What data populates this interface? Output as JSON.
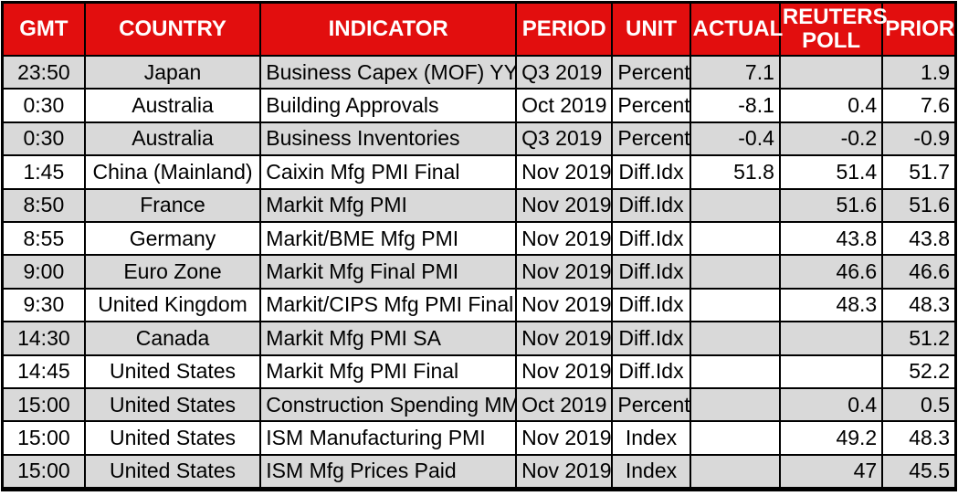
{
  "colors": {
    "header_bg": "#E20E0E",
    "header_text": "#FFFFFF",
    "row_stripe_bg": "#D9D9D9",
    "row_bg": "#FFFFFF",
    "grid_border": "#000000",
    "body_text": "#000000"
  },
  "table": {
    "columns": [
      {
        "key": "gmt",
        "label": "GMT",
        "align": "center"
      },
      {
        "key": "country",
        "label": "COUNTRY",
        "align": "center"
      },
      {
        "key": "indicator",
        "label": "INDICATOR",
        "align": "left"
      },
      {
        "key": "period",
        "label": "PERIOD",
        "align": "left"
      },
      {
        "key": "unit",
        "label": "UNIT",
        "align": "center"
      },
      {
        "key": "actual",
        "label": "ACTUAL",
        "align": "right"
      },
      {
        "key": "poll",
        "label": "REUTERS POLL",
        "align": "right"
      },
      {
        "key": "prior",
        "label": "PRIOR",
        "align": "right"
      }
    ],
    "rows": [
      {
        "gmt": "23:50",
        "country": "Japan",
        "indicator": "Business Capex (MOF) YY",
        "period": "Q3 2019",
        "unit": "Percent",
        "actual": "7.1",
        "poll": "",
        "prior": "1.9"
      },
      {
        "gmt": "0:30",
        "country": "Australia",
        "indicator": "Building Approvals",
        "period": "Oct 2019",
        "unit": "Percent",
        "actual": "-8.1",
        "poll": "0.4",
        "prior": "7.6"
      },
      {
        "gmt": "0:30",
        "country": "Australia",
        "indicator": "Business Inventories",
        "period": "Q3 2019",
        "unit": "Percent",
        "actual": "-0.4",
        "poll": "-0.2",
        "prior": "-0.9"
      },
      {
        "gmt": "1:45",
        "country": "China (Mainland)",
        "indicator": "Caixin Mfg PMI Final",
        "period": "Nov 2019",
        "unit": "Diff.Idx",
        "actual": "51.8",
        "poll": "51.4",
        "prior": "51.7"
      },
      {
        "gmt": "8:50",
        "country": "France",
        "indicator": "Markit Mfg PMI",
        "period": "Nov 2019",
        "unit": "Diff.Idx",
        "actual": "",
        "poll": "51.6",
        "prior": "51.6"
      },
      {
        "gmt": "8:55",
        "country": "Germany",
        "indicator": "Markit/BME Mfg PMI",
        "period": "Nov 2019",
        "unit": "Diff.Idx",
        "actual": "",
        "poll": "43.8",
        "prior": "43.8"
      },
      {
        "gmt": "9:00",
        "country": "Euro Zone",
        "indicator": "Markit Mfg Final PMI",
        "period": "Nov 2019",
        "unit": "Diff.Idx",
        "actual": "",
        "poll": "46.6",
        "prior": "46.6"
      },
      {
        "gmt": "9:30",
        "country": "United Kingdom",
        "indicator": "Markit/CIPS Mfg PMI Final",
        "period": "Nov 2019",
        "unit": "Diff.Idx",
        "actual": "",
        "poll": "48.3",
        "prior": "48.3"
      },
      {
        "gmt": "14:30",
        "country": "Canada",
        "indicator": "Markit Mfg PMI SA",
        "period": "Nov 2019",
        "unit": "Diff.Idx",
        "actual": "",
        "poll": "",
        "prior": "51.2"
      },
      {
        "gmt": "14:45",
        "country": "United States",
        "indicator": "Markit Mfg PMI Final",
        "period": "Nov 2019",
        "unit": "Diff.Idx",
        "actual": "",
        "poll": "",
        "prior": "52.2"
      },
      {
        "gmt": "15:00",
        "country": "United States",
        "indicator": "Construction Spending MM",
        "period": "Oct 2019",
        "unit": "Percent",
        "actual": "",
        "poll": "0.4",
        "prior": "0.5"
      },
      {
        "gmt": "15:00",
        "country": "United States",
        "indicator": "ISM Manufacturing PMI",
        "period": "Nov 2019",
        "unit": "Index",
        "actual": "",
        "poll": "49.2",
        "prior": "48.3"
      },
      {
        "gmt": "15:00",
        "country": "United States",
        "indicator": "ISM Mfg Prices Paid",
        "period": "Nov 2019",
        "unit": "Index",
        "actual": "",
        "poll": "47",
        "prior": "45.5"
      }
    ]
  }
}
